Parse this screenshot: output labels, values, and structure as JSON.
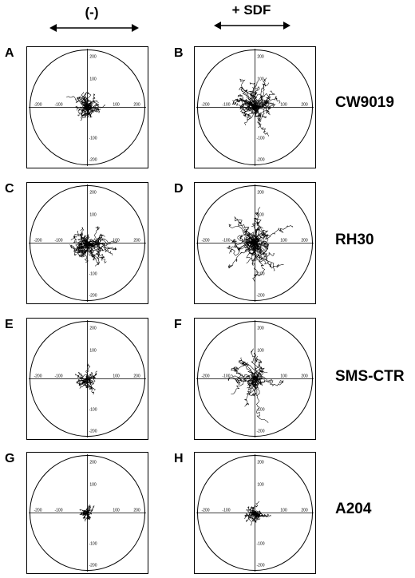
{
  "columns": {
    "left_header": "(-)",
    "right_header": "+ SDF"
  },
  "cell_lines": [
    "CW9019",
    "RH30",
    "SMS-CTR",
    "A204"
  ],
  "panels": [
    {
      "letter": "A",
      "spread": 26,
      "tracks": 34,
      "seed": 11
    },
    {
      "letter": "B",
      "spread": 40,
      "tracks": 40,
      "seed": 23
    },
    {
      "letter": "C",
      "spread": 40,
      "tracks": 40,
      "seed": 37
    },
    {
      "letter": "D",
      "spread": 48,
      "tracks": 40,
      "seed": 41
    },
    {
      "letter": "E",
      "spread": 20,
      "tracks": 26,
      "seed": 53
    },
    {
      "letter": "F",
      "spread": 50,
      "tracks": 22,
      "seed": 67
    },
    {
      "letter": "G",
      "spread": 14,
      "tracks": 24,
      "seed": 71
    },
    {
      "letter": "H",
      "spread": 20,
      "tracks": 26,
      "seed": 83
    }
  ],
  "axis_ticks": {
    "top": [
      "200",
      "100"
    ],
    "left": [
      "-200",
      "-100"
    ],
    "right": [
      "100",
      "200"
    ],
    "bottom": [
      "-100",
      "-200"
    ]
  }
}
